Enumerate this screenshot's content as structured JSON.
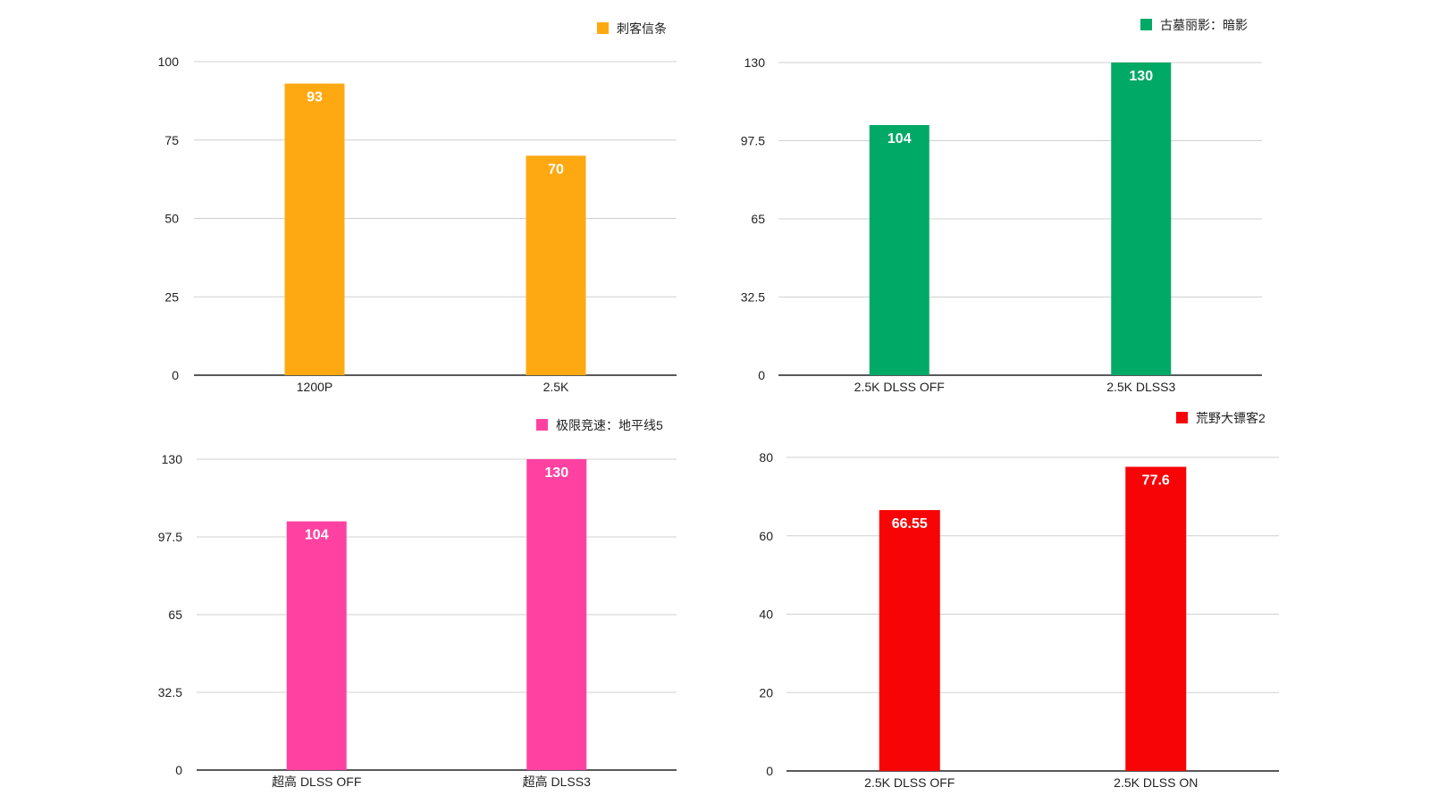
{
  "chart_data": [
    {
      "type": "bar",
      "series": [
        {
          "name": "刺客信条",
          "color": "#FFA912",
          "values": [
            93,
            70
          ]
        }
      ],
      "categories": [
        "1200P",
        "2.5K"
      ],
      "yticks": [
        "0",
        "25",
        "50",
        "75",
        "100"
      ],
      "ylim": [
        0,
        100
      ],
      "value_labels": [
        "93",
        "70"
      ],
      "grid": true,
      "legend_position": "top-right"
    },
    {
      "type": "bar",
      "series": [
        {
          "name": "古墓丽影：暗影",
          "color": "#00A966",
          "values": [
            104,
            130
          ]
        }
      ],
      "categories": [
        "2.5K DLSS OFF",
        "2.5K DLSS3"
      ],
      "yticks": [
        "0",
        "32.5",
        "65",
        "97.5",
        "130"
      ],
      "ylim": [
        0,
        130
      ],
      "value_labels": [
        "104",
        "130"
      ],
      "grid": true,
      "legend_position": "top-right"
    },
    {
      "type": "bar",
      "series": [
        {
          "name": "极限竞速：地平线5",
          "color": "#FF42A1",
          "values": [
            104,
            130
          ]
        }
      ],
      "categories": [
        "超高 DLSS OFF",
        "超高 DLSS3"
      ],
      "yticks": [
        "0",
        "32.5",
        "65",
        "97.5",
        "130"
      ],
      "ylim": [
        0,
        130
      ],
      "value_labels": [
        "104",
        "130"
      ],
      "grid": true,
      "legend_position": "top-right"
    },
    {
      "type": "bar",
      "series": [
        {
          "name": "荒野大镖客2",
          "color": "#F70407",
          "values": [
            66.55,
            77.6
          ]
        }
      ],
      "categories": [
        "2.5K DLSS OFF",
        "2.5K DLSS ON"
      ],
      "yticks": [
        "0",
        "20",
        "40",
        "60",
        "80"
      ],
      "ylim": [
        0,
        80
      ],
      "value_labels": [
        "66.55",
        "77.6"
      ],
      "grid": true,
      "legend_position": "top-right"
    }
  ]
}
